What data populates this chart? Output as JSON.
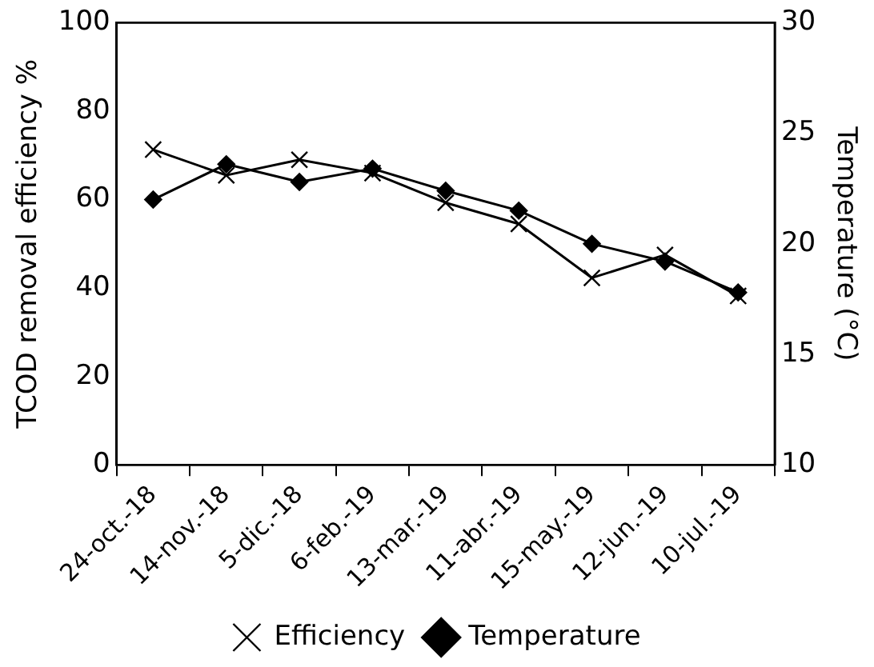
{
  "chart_data": {
    "type": "line",
    "xlabel": null,
    "ylabel": "TCOD removal efficiency %",
    "y2label": "Temperature (°C)",
    "categories": [
      "24-oct.-18",
      "14-nov.-18",
      "5-dic.-18",
      "6-feb.-19",
      "13-mar.-19",
      "11-abr.-19",
      "15-may.-19",
      "12-jun.-19",
      "10-jul.-19"
    ],
    "series": [
      {
        "name": "Efficiency",
        "color": "#000000",
        "marker": "cross",
        "values": [
          71.3,
          65.5,
          69,
          66,
          59.3,
          54.5,
          42.3,
          47.5,
          38.2
        ]
      },
      {
        "name": "Temperature",
        "color": "#000000",
        "marker": "diamond",
        "axis": "y2",
        "values": [
          22.0,
          23.6,
          22.8,
          23.4,
          22.4,
          21.5,
          20.0,
          19.2,
          17.8
        ]
      }
    ],
    "ylim": [
      0,
      100
    ],
    "yticks": [
      0,
      20,
      40,
      60,
      80,
      100
    ],
    "y2lim": [
      10,
      30
    ],
    "y2ticks": [
      10,
      15,
      20,
      25,
      30
    ],
    "grid": false,
    "legend": "bottom",
    "line_style": "solid"
  }
}
